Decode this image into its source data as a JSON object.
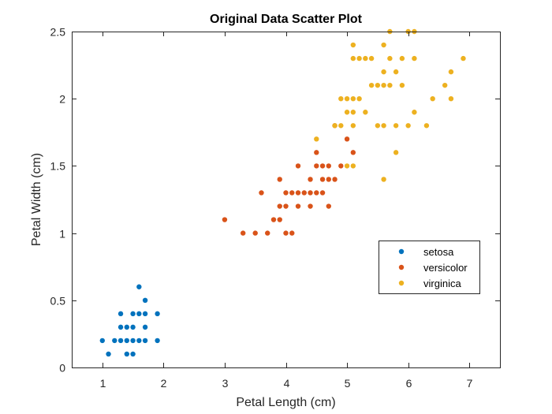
{
  "chart_data": {
    "type": "scatter",
    "title": "Original Data Scatter Plot",
    "xlabel": "Petal Length (cm)",
    "ylabel": "Petal Width (cm)",
    "xlim": [
      0.5,
      7.5
    ],
    "ylim": [
      0,
      2.5
    ],
    "xticks": [
      1,
      2,
      3,
      4,
      5,
      6,
      7
    ],
    "yticks": [
      0,
      0.5,
      1,
      1.5,
      2,
      2.5
    ],
    "xtick_labels": [
      "1",
      "2",
      "3",
      "4",
      "5",
      "6",
      "7"
    ],
    "ytick_labels": [
      "0",
      "0.5",
      "1",
      "1.5",
      "2",
      "2.5"
    ],
    "grid": false,
    "legend_position": "right",
    "series": [
      {
        "name": "setosa",
        "color": "#0072BD",
        "points": [
          [
            1.0,
            0.2
          ],
          [
            1.1,
            0.1
          ],
          [
            1.2,
            0.2
          ],
          [
            1.3,
            0.2
          ],
          [
            1.3,
            0.3
          ],
          [
            1.3,
            0.4
          ],
          [
            1.4,
            0.1
          ],
          [
            1.4,
            0.2
          ],
          [
            1.4,
            0.3
          ],
          [
            1.5,
            0.1
          ],
          [
            1.5,
            0.2
          ],
          [
            1.5,
            0.3
          ],
          [
            1.5,
            0.4
          ],
          [
            1.6,
            0.2
          ],
          [
            1.6,
            0.4
          ],
          [
            1.6,
            0.6
          ],
          [
            1.7,
            0.2
          ],
          [
            1.7,
            0.3
          ],
          [
            1.7,
            0.4
          ],
          [
            1.7,
            0.5
          ],
          [
            1.9,
            0.2
          ],
          [
            1.9,
            0.4
          ]
        ]
      },
      {
        "name": "versicolor",
        "color": "#D95319",
        "points": [
          [
            3.0,
            1.1
          ],
          [
            3.3,
            1.0
          ],
          [
            3.5,
            1.0
          ],
          [
            3.6,
            1.3
          ],
          [
            3.7,
            1.0
          ],
          [
            3.8,
            1.1
          ],
          [
            3.9,
            1.1
          ],
          [
            3.9,
            1.2
          ],
          [
            3.9,
            1.4
          ],
          [
            4.0,
            1.0
          ],
          [
            4.0,
            1.2
          ],
          [
            4.0,
            1.3
          ],
          [
            4.1,
            1.0
          ],
          [
            4.1,
            1.3
          ],
          [
            4.2,
            1.2
          ],
          [
            4.2,
            1.3
          ],
          [
            4.2,
            1.5
          ],
          [
            4.3,
            1.3
          ],
          [
            4.4,
            1.2
          ],
          [
            4.4,
            1.3
          ],
          [
            4.4,
            1.4
          ],
          [
            4.5,
            1.3
          ],
          [
            4.5,
            1.5
          ],
          [
            4.5,
            1.6
          ],
          [
            4.6,
            1.3
          ],
          [
            4.6,
            1.4
          ],
          [
            4.6,
            1.5
          ],
          [
            4.7,
            1.2
          ],
          [
            4.7,
            1.4
          ],
          [
            4.7,
            1.5
          ],
          [
            4.8,
            1.4
          ],
          [
            4.8,
            1.8
          ],
          [
            4.9,
            1.5
          ],
          [
            5.0,
            1.7
          ],
          [
            5.1,
            1.6
          ]
        ]
      },
      {
        "name": "virginica",
        "color": "#EDB120",
        "points": [
          [
            4.5,
            1.7
          ],
          [
            4.8,
            1.8
          ],
          [
            4.9,
            1.8
          ],
          [
            4.9,
            2.0
          ],
          [
            5.0,
            1.5
          ],
          [
            5.0,
            1.9
          ],
          [
            5.0,
            2.0
          ],
          [
            5.1,
            1.5
          ],
          [
            5.1,
            1.8
          ],
          [
            5.1,
            1.9
          ],
          [
            5.1,
            2.0
          ],
          [
            5.1,
            2.3
          ],
          [
            5.1,
            2.4
          ],
          [
            5.2,
            2.0
          ],
          [
            5.2,
            2.3
          ],
          [
            5.3,
            1.9
          ],
          [
            5.3,
            2.3
          ],
          [
            5.4,
            2.1
          ],
          [
            5.4,
            2.3
          ],
          [
            5.5,
            1.8
          ],
          [
            5.5,
            2.1
          ],
          [
            5.6,
            1.4
          ],
          [
            5.6,
            1.8
          ],
          [
            5.6,
            2.1
          ],
          [
            5.6,
            2.2
          ],
          [
            5.6,
            2.4
          ],
          [
            5.7,
            2.1
          ],
          [
            5.7,
            2.3
          ],
          [
            5.7,
            2.5
          ],
          [
            5.8,
            1.6
          ],
          [
            5.8,
            1.8
          ],
          [
            5.8,
            2.2
          ],
          [
            5.9,
            2.1
          ],
          [
            5.9,
            2.3
          ],
          [
            6.0,
            1.8
          ],
          [
            6.0,
            2.5
          ],
          [
            6.1,
            1.9
          ],
          [
            6.1,
            2.3
          ],
          [
            6.1,
            2.5
          ],
          [
            6.3,
            1.8
          ],
          [
            6.4,
            2.0
          ],
          [
            6.6,
            2.1
          ],
          [
            6.7,
            2.0
          ],
          [
            6.7,
            2.2
          ],
          [
            6.9,
            2.3
          ]
        ]
      }
    ]
  }
}
